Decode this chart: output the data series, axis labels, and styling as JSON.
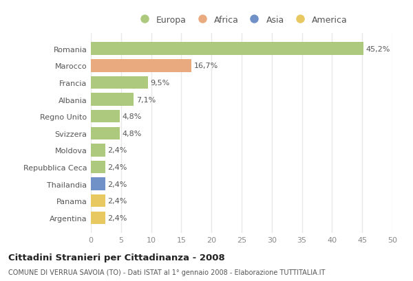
{
  "categories": [
    "Romania",
    "Marocco",
    "Francia",
    "Albania",
    "Regno Unito",
    "Svizzera",
    "Moldova",
    "Repubblica Ceca",
    "Thailandia",
    "Panama",
    "Argentina"
  ],
  "values": [
    45.2,
    16.7,
    9.5,
    7.1,
    4.8,
    4.8,
    2.4,
    2.4,
    2.4,
    2.4,
    2.4
  ],
  "labels": [
    "45,2%",
    "16,7%",
    "9,5%",
    "7,1%",
    "4,8%",
    "4,8%",
    "2,4%",
    "2,4%",
    "2,4%",
    "2,4%",
    "2,4%"
  ],
  "colors": [
    "#adc97e",
    "#e8aa7e",
    "#adc97e",
    "#adc97e",
    "#adc97e",
    "#adc97e",
    "#adc97e",
    "#adc97e",
    "#7090c8",
    "#e8c860",
    "#e8c860"
  ],
  "legend_labels": [
    "Europa",
    "Africa",
    "Asia",
    "America"
  ],
  "legend_colors": [
    "#adc97e",
    "#e8aa7e",
    "#7090c8",
    "#e8c860"
  ],
  "xlim": [
    0,
    50
  ],
  "xticks": [
    0,
    5,
    10,
    15,
    20,
    25,
    30,
    35,
    40,
    45,
    50
  ],
  "title": "Cittadini Stranieri per Cittadinanza - 2008",
  "subtitle": "COMUNE DI VERRUA SAVOIA (TO) - Dati ISTAT al 1° gennaio 2008 - Elaborazione TUTTITALIA.IT",
  "background_color": "#ffffff",
  "grid_color": "#e8e8e8",
  "bar_height": 0.75,
  "label_fontsize": 8,
  "ytick_fontsize": 8,
  "xtick_fontsize": 8
}
